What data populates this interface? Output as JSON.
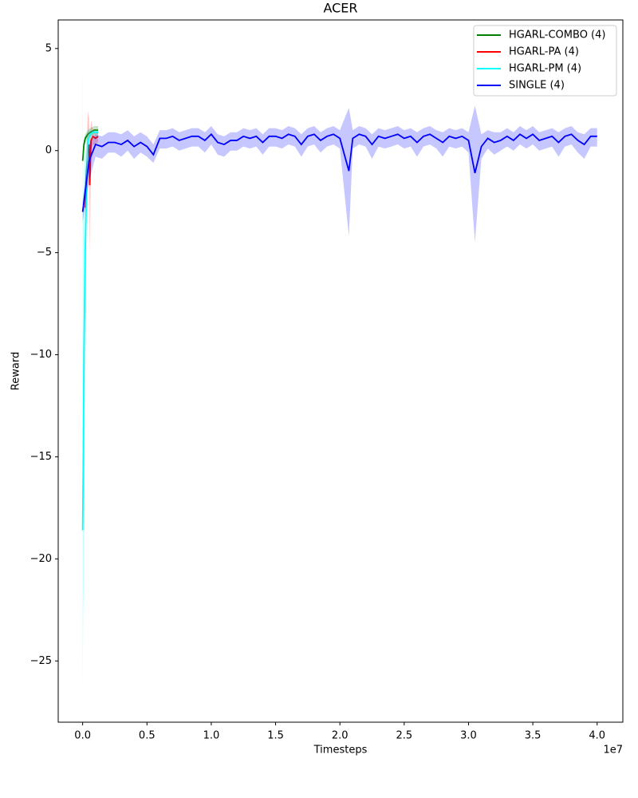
{
  "chart_data": {
    "type": "line",
    "title": "ACER",
    "x_label": "Timesteps",
    "y_label": "Reward",
    "x_offset_label": "1e7",
    "xlim": [
      -0.19,
      4.2
    ],
    "ylim": [
      -28,
      6.4
    ],
    "xticks": [
      {
        "value": 0,
        "label": "0.0"
      },
      0.5,
      {
        "value": 1,
        "label": "1.0"
      },
      1.5,
      {
        "value": 2,
        "label": "2.0"
      },
      2.5,
      {
        "value": 3,
        "label": "3.0"
      },
      3.5,
      {
        "value": 4,
        "label": "4.0"
      }
    ],
    "yticks": [
      {
        "value": -25,
        "label": "−25"
      },
      {
        "value": -20,
        "label": "−20"
      },
      {
        "value": -15,
        "label": "−15"
      },
      {
        "value": -10,
        "label": "−10"
      },
      {
        "value": -5,
        "label": "−5"
      },
      0,
      5
    ],
    "grid": false,
    "legend": "upper right",
    "series": [
      {
        "name": "HGARL-COMBO (4)",
        "color": "#008000",
        "x": [
          0,
          0.01,
          0.02,
          0.04,
          0.06,
          0.09,
          0.12
        ],
        "values": [
          -0.5,
          0.3,
          0.6,
          0.8,
          0.9,
          1.0,
          1.0
        ],
        "lower": [
          -0.7,
          0.1,
          0.4,
          0.6,
          0.7,
          0.8,
          0.8
        ],
        "upper": [
          -0.3,
          0.5,
          0.8,
          1.0,
          1.1,
          1.2,
          1.2
        ]
      },
      {
        "name": "HGARL-PA (4)",
        "color": "#ff0000",
        "x": [
          0.02,
          0.03,
          0.04,
          0.05,
          0.055,
          0.065,
          0.08,
          0.1,
          0.12
        ],
        "values": [
          -2.8,
          -1.0,
          0.0,
          0.3,
          -1.7,
          0.5,
          0.7,
          0.6,
          0.7
        ],
        "lower": [
          -3.5,
          -2,
          -0.6,
          -0.3,
          -5.1,
          0,
          0.3,
          0.3,
          0.4
        ],
        "upper": [
          -2,
          0,
          1.9,
          1.6,
          0.5,
          1.5,
          1.0,
          0.9,
          0.9
        ]
      },
      {
        "name": "HGARL-PM (4)",
        "color": "#00ffff",
        "x": [
          0,
          0.005,
          0.01,
          0.02,
          0.03,
          0.04,
          0.06,
          0.08,
          0.1,
          0.12
        ],
        "values": [
          -18.6,
          -15,
          -10,
          -5,
          -2,
          0.5,
          0.8,
          0.9,
          0.9,
          0.9
        ],
        "lower": [
          -26.5,
          -22.6,
          -20.7,
          -10.5,
          -4,
          0,
          0.5,
          0.7,
          0.7,
          0.7
        ],
        "upper": [
          4.8,
          -3,
          -1,
          0,
          0.5,
          1.0,
          1.0,
          1.0,
          1.0,
          1.0
        ]
      },
      {
        "name": "SINGLE (4)",
        "color": "#0000ff",
        "x": [
          0,
          0.05,
          0.1,
          0.15,
          0.2,
          0.25,
          0.3,
          0.35,
          0.4,
          0.45,
          0.5,
          0.55,
          0.6,
          0.65,
          0.7,
          0.75,
          0.8,
          0.85,
          0.9,
          0.95,
          1.0,
          1.05,
          1.1,
          1.15,
          1.2,
          1.25,
          1.3,
          1.35,
          1.4,
          1.45,
          1.5,
          1.55,
          1.6,
          1.65,
          1.7,
          1.75,
          1.8,
          1.85,
          1.9,
          1.95,
          2.0,
          2.07,
          2.1,
          2.15,
          2.2,
          2.25,
          2.3,
          2.35,
          2.4,
          2.45,
          2.5,
          2.55,
          2.6,
          2.65,
          2.7,
          2.75,
          2.8,
          2.85,
          2.9,
          2.95,
          3.0,
          3.05,
          3.1,
          3.15,
          3.2,
          3.25,
          3.3,
          3.35,
          3.4,
          3.45,
          3.5,
          3.55,
          3.6,
          3.65,
          3.7,
          3.75,
          3.8,
          3.85,
          3.9,
          3.95,
          4.0
        ],
        "values": [
          -3.0,
          -0.5,
          0.3,
          0.2,
          0.4,
          0.4,
          0.3,
          0.5,
          0.2,
          0.4,
          0.2,
          -0.2,
          0.6,
          0.6,
          0.7,
          0.5,
          0.6,
          0.7,
          0.7,
          0.5,
          0.8,
          0.4,
          0.3,
          0.5,
          0.5,
          0.7,
          0.6,
          0.7,
          0.4,
          0.7,
          0.7,
          0.6,
          0.8,
          0.7,
          0.3,
          0.7,
          0.8,
          0.5,
          0.7,
          0.8,
          0.6,
          -1.0,
          0.6,
          0.8,
          0.7,
          0.3,
          0.7,
          0.6,
          0.7,
          0.8,
          0.6,
          0.7,
          0.4,
          0.7,
          0.8,
          0.6,
          0.4,
          0.7,
          0.6,
          0.7,
          0.5,
          -1.1,
          0.2,
          0.6,
          0.4,
          0.5,
          0.7,
          0.5,
          0.8,
          0.6,
          0.8,
          0.5,
          0.6,
          0.7,
          0.4,
          0.7,
          0.8,
          0.5,
          0.3,
          0.7,
          0.7
        ],
        "lower": [
          -3.5,
          -1.5,
          -0.3,
          -0.4,
          -0.1,
          -0.1,
          -0.3,
          0.0,
          -0.4,
          -0.1,
          -0.3,
          -0.6,
          0.1,
          0.1,
          0.2,
          0.0,
          0.1,
          0.2,
          0.2,
          -0.1,
          0.3,
          -0.2,
          -0.3,
          0.0,
          0.0,
          0.2,
          0.1,
          0.2,
          -0.2,
          0.2,
          0.2,
          0.1,
          0.3,
          0.2,
          -0.3,
          0.2,
          0.3,
          -0.1,
          0.2,
          0.3,
          0.1,
          -4.2,
          0.1,
          0.3,
          0.2,
          -0.4,
          0.2,
          0.1,
          0.2,
          0.3,
          0.1,
          0.2,
          -0.3,
          0.2,
          0.3,
          0.1,
          -0.3,
          0.2,
          0.1,
          0.2,
          -0.1,
          -4.5,
          -0.4,
          0.1,
          -0.2,
          0.0,
          0.2,
          0.0,
          0.3,
          0.1,
          0.3,
          0.0,
          0.1,
          0.2,
          -0.3,
          0.2,
          0.3,
          -0.1,
          -0.4,
          0.2,
          0.2
        ],
        "upper": [
          -2.5,
          0.3,
          0.8,
          0.7,
          0.9,
          0.9,
          0.8,
          1.0,
          0.7,
          0.9,
          0.7,
          0.3,
          1.0,
          1.0,
          1.1,
          0.9,
          1.0,
          1.1,
          1.1,
          0.9,
          1.2,
          0.8,
          0.7,
          0.9,
          0.9,
          1.1,
          1.0,
          1.1,
          0.8,
          1.1,
          1.1,
          1.0,
          1.2,
          1.1,
          0.8,
          1.1,
          1.2,
          0.9,
          1.1,
          1.2,
          1.0,
          2.1,
          1.0,
          1.2,
          1.1,
          0.8,
          1.1,
          1.0,
          1.1,
          1.2,
          1.0,
          1.1,
          0.9,
          1.1,
          1.2,
          1.0,
          0.9,
          1.1,
          1.0,
          1.1,
          0.9,
          2.2,
          0.8,
          1.0,
          0.9,
          0.9,
          1.1,
          0.9,
          1.2,
          1.0,
          1.2,
          0.9,
          1.0,
          1.1,
          0.9,
          1.1,
          1.2,
          0.9,
          0.8,
          1.1,
          1.1
        ]
      }
    ]
  }
}
